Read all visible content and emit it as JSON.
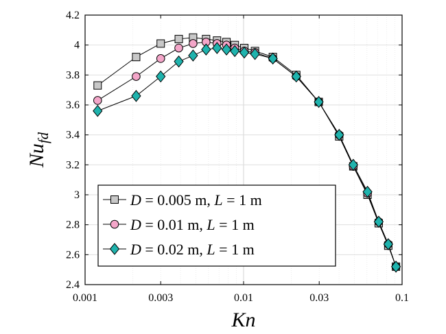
{
  "chart_data": {
    "type": "line",
    "xscale": "log",
    "xlim": [
      0.001,
      0.1
    ],
    "ylim": [
      2.4,
      4.2
    ],
    "xticks": [
      {
        "value": 0.001,
        "label": "0.001"
      },
      {
        "value": 0.003,
        "label": "0.003"
      },
      {
        "value": 0.01,
        "label": "0.01"
      },
      {
        "value": 0.03,
        "label": "0.03"
      },
      {
        "value": 0.1,
        "label": "0.1"
      }
    ],
    "yticks": [
      {
        "value": 2.4,
        "label": "2.4"
      },
      {
        "value": 2.6,
        "label": "2.6"
      },
      {
        "value": 2.8,
        "label": "2.8"
      },
      {
        "value": 3.0,
        "label": "3"
      },
      {
        "value": 3.2,
        "label": "3.2"
      },
      {
        "value": 3.4,
        "label": "3.4"
      },
      {
        "value": 3.6,
        "label": "3.6"
      },
      {
        "value": 3.8,
        "label": "3.8"
      },
      {
        "value": 4.0,
        "label": "4"
      },
      {
        "value": 4.2,
        "label": "4.2"
      }
    ],
    "xlabel": "Kn",
    "ylabel": "Nu_fd",
    "ylabel_main": "Nu",
    "ylabel_sub": "fd",
    "grid": true,
    "legend_position": "lower-left",
    "series": [
      {
        "name": "D = 0.005 m, L = 1 m",
        "legend": {
          "var1": "D",
          "val1": " = 0.005 m, ",
          "var2": "L",
          "val2": " = 1 m"
        },
        "marker": "square",
        "color": "#c8c8c8",
        "x": [
          0.0012,
          0.0021,
          0.003,
          0.0039,
          0.0048,
          0.0058,
          0.0068,
          0.0078,
          0.0088,
          0.0101,
          0.0118,
          0.0153,
          0.0215,
          0.0298,
          0.0401,
          0.0492,
          0.0605,
          0.0712,
          0.0818,
          0.0915
        ],
        "y": [
          3.73,
          3.92,
          4.01,
          4.04,
          4.05,
          4.04,
          4.03,
          4.02,
          4.0,
          3.98,
          3.96,
          3.92,
          3.8,
          3.62,
          3.39,
          3.19,
          3.0,
          2.81,
          2.66,
          2.52
        ]
      },
      {
        "name": "D = 0.01 m, L = 1 m",
        "legend": {
          "var1": "D",
          "val1": " = 0.01 m, ",
          "var2": "L",
          "val2": " = 1 m"
        },
        "marker": "circle",
        "color": "#f4a6c9",
        "x": [
          0.0012,
          0.0021,
          0.003,
          0.0039,
          0.0048,
          0.0058,
          0.0068,
          0.0078,
          0.0088,
          0.0101,
          0.0118,
          0.0153,
          0.0215,
          0.0298,
          0.0401,
          0.0492,
          0.0605,
          0.0712,
          0.0818,
          0.0915
        ],
        "y": [
          3.63,
          3.79,
          3.91,
          3.98,
          4.01,
          4.02,
          4.01,
          4.0,
          3.98,
          3.96,
          3.95,
          3.91,
          3.79,
          3.62,
          3.4,
          3.19,
          3.01,
          2.82,
          2.67,
          2.52
        ]
      },
      {
        "name": "D = 0.02 m, L = 1 m",
        "legend": {
          "var1": "D",
          "val1": " = 0.02 m, ",
          "var2": "L",
          "val2": " = 1 m"
        },
        "marker": "diamond",
        "color": "#1fb3ad",
        "x": [
          0.0012,
          0.0021,
          0.003,
          0.0039,
          0.0048,
          0.0058,
          0.0068,
          0.0078,
          0.0088,
          0.0101,
          0.0118,
          0.0153,
          0.0215,
          0.0298,
          0.0401,
          0.0492,
          0.0605,
          0.0712,
          0.0818,
          0.0915
        ],
        "y": [
          3.56,
          3.66,
          3.79,
          3.89,
          3.93,
          3.97,
          3.98,
          3.97,
          3.96,
          3.95,
          3.94,
          3.91,
          3.79,
          3.62,
          3.4,
          3.2,
          3.02,
          2.82,
          2.67,
          2.52
        ]
      }
    ]
  }
}
